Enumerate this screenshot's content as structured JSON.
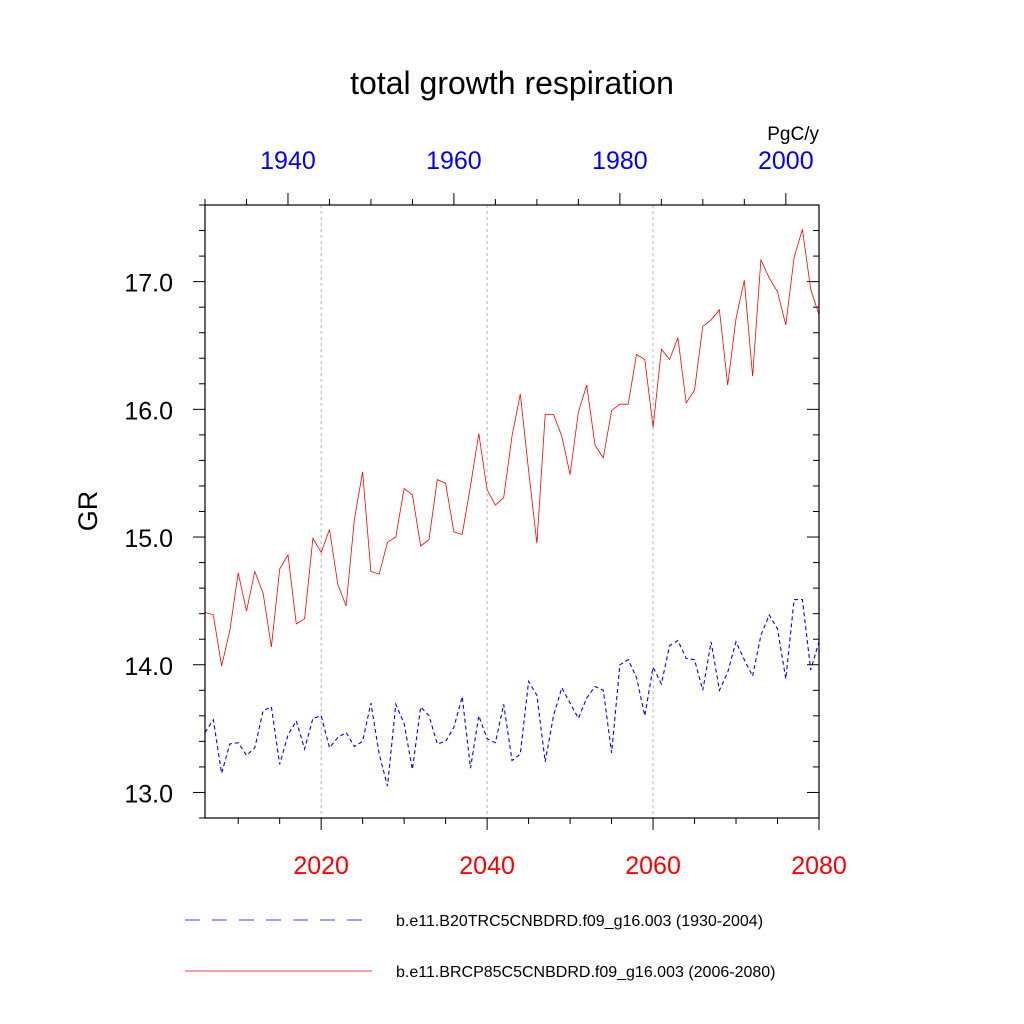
{
  "chart_data": {
    "type": "line",
    "title": "total growth respiration",
    "ylabel": "GR",
    "units": "PgC/y",
    "ylim": [
      12.8,
      17.6
    ],
    "yticks": [
      13.0,
      14.0,
      15.0,
      16.0,
      17.0
    ],
    "ytick_labels": [
      "13.0",
      "14.0",
      "15.0",
      "16.0",
      "17.0"
    ],
    "bottom_axis": {
      "range": [
        2006,
        2080
      ],
      "ticks": [
        2020,
        2040,
        2060,
        2080
      ],
      "tick_labels": [
        "2020",
        "2040",
        "2060",
        "2080"
      ],
      "color": "#ff0000"
    },
    "top_axis": {
      "range": [
        1930,
        2004
      ],
      "ticks": [
        1940,
        1960,
        1980,
        2000
      ],
      "tick_labels": [
        "1940",
        "1960",
        "1980",
        "2000"
      ],
      "color": "#0000ff"
    },
    "vgrid_years_bottom": [
      2020,
      2040,
      2060
    ],
    "series": [
      {
        "name": "b.e11.B20TRC5CNBDRD.f09_g16.003 (1930-2004)",
        "axis": "top",
        "x_start": 1930,
        "color": "#0000ff",
        "dash": "dashed",
        "values": [
          13.47,
          13.57,
          13.15,
          13.38,
          13.39,
          13.29,
          13.35,
          13.64,
          13.67,
          13.22,
          13.45,
          13.56,
          13.34,
          13.58,
          13.6,
          13.35,
          13.43,
          13.47,
          13.36,
          13.4,
          13.7,
          13.3,
          13.05,
          13.69,
          13.54,
          13.18,
          13.67,
          13.6,
          13.38,
          13.4,
          13.51,
          13.75,
          13.19,
          13.6,
          13.42,
          13.39,
          13.69,
          13.25,
          13.3,
          13.87,
          13.76,
          13.24,
          13.6,
          13.82,
          13.7,
          13.58,
          13.74,
          13.83,
          13.8,
          13.31,
          14.0,
          14.04,
          13.9,
          13.6,
          13.98,
          13.85,
          14.15,
          14.19,
          14.05,
          14.04,
          13.8,
          14.18,
          13.8,
          13.94,
          14.18,
          14.04,
          13.91,
          14.23,
          14.39,
          14.28,
          13.89,
          14.51,
          14.51,
          13.96,
          14.18
        ]
      },
      {
        "name": "b.e11.BRCP85C5CNBDRD.f09_g16.003 (2006-2080)",
        "axis": "bottom",
        "x_start": 2006,
        "color": "#ff0000",
        "dash": "solid",
        "values": [
          14.41,
          14.39,
          13.99,
          14.27,
          14.72,
          14.42,
          14.73,
          14.56,
          14.14,
          14.75,
          14.86,
          14.32,
          14.36,
          14.99,
          14.88,
          15.06,
          14.63,
          14.46,
          15.14,
          15.51,
          14.73,
          14.71,
          14.96,
          15.0,
          15.38,
          15.33,
          14.93,
          14.98,
          15.45,
          15.42,
          15.04,
          15.02,
          15.4,
          15.81,
          15.37,
          15.25,
          15.31,
          15.79,
          16.12,
          15.52,
          14.95,
          15.96,
          15.96,
          15.79,
          15.49,
          15.98,
          16.19,
          15.72,
          15.62,
          15.99,
          16.04,
          16.04,
          16.43,
          16.39,
          15.86,
          16.47,
          16.39,
          16.56,
          16.05,
          16.15,
          16.65,
          16.7,
          16.78,
          16.19,
          16.71,
          17.01,
          16.26,
          17.17,
          17.03,
          16.92,
          16.66,
          17.19,
          17.41,
          16.94,
          16.74
        ]
      }
    ]
  }
}
